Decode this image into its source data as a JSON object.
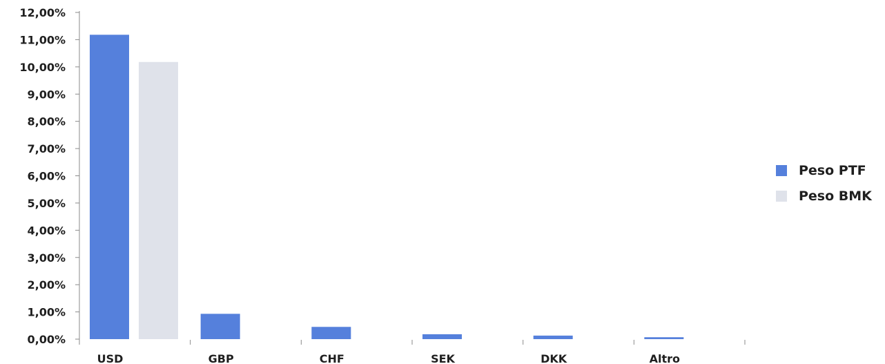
{
  "chart_data": {
    "type": "bar",
    "title": "",
    "xlabel": "",
    "ylabel": "",
    "categories": [
      "USD",
      "GBP",
      "CHF",
      "SEK",
      "DKK",
      "Altro"
    ],
    "series": [
      {
        "name": "Peso PTF",
        "color": "#5580dc",
        "values": [
          11.18,
          0.93,
          0.45,
          0.18,
          0.13,
          0.07
        ]
      },
      {
        "name": "Peso BMK",
        "color": "#dfe2ea",
        "values": [
          10.18,
          0,
          0,
          0,
          0,
          0
        ]
      }
    ],
    "ylim": [
      0,
      12
    ],
    "y_ticks": [
      "0,00%",
      "1,00%",
      "2,00%",
      "3,00%",
      "4,00%",
      "5,00%",
      "6,00%",
      "7,00%",
      "8,00%",
      "9,00%",
      "10,00%",
      "11,00%",
      "12,00%"
    ],
    "grid": false,
    "legend_position": "right"
  }
}
